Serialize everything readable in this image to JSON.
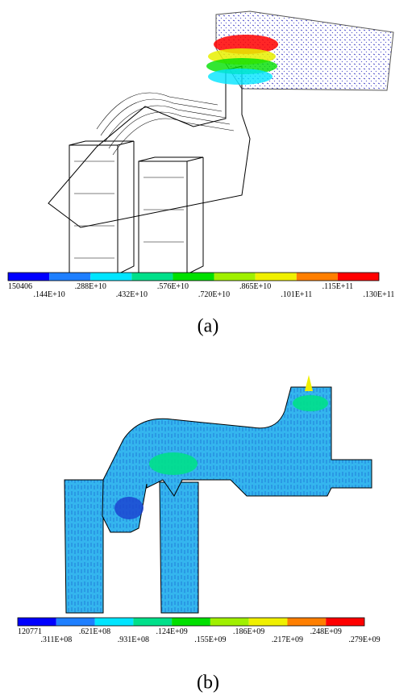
{
  "panels": [
    {
      "legend": {
        "colors": [
          "#0000ff",
          "#1e7fff",
          "#00e5ff",
          "#00e08a",
          "#00e000",
          "#a0f000",
          "#f0f000",
          "#ff7f00",
          "#ff0000"
        ],
        "labels": [
          "150406",
          ".144E+10",
          ".288E+10",
          ".432E+10",
          ".576E+10",
          ".720E+10",
          ".865E+10",
          ".101E+11",
          ".115E+11",
          ".130E+11"
        ]
      },
      "caption": "(a)"
    },
    {
      "legend": {
        "colors": [
          "#0000ff",
          "#1e7fff",
          "#00e5ff",
          "#00e08a",
          "#00e000",
          "#a0f000",
          "#f0f000",
          "#ff7f00",
          "#ff0000"
        ],
        "labels": [
          "120771",
          ".311E+08",
          ".621E+08",
          ".931E+08",
          ".124E+09",
          ".155E+09",
          ".186E+09",
          ".217E+09",
          ".248E+09",
          ".279E+09"
        ]
      },
      "caption": "(b)"
    }
  ]
}
